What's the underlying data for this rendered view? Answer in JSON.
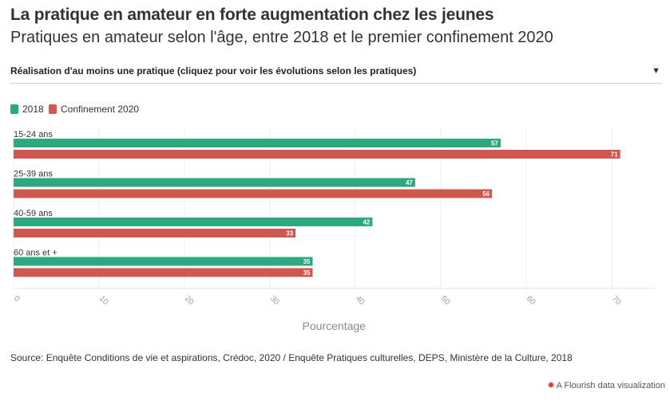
{
  "header": {
    "title": "La pratique en amateur en forte augmentation chez les jeunes",
    "subtitle": "Pratiques en amateur selon l'âge, entre 2018 et le premier confinement 2020"
  },
  "filter": {
    "selected": "Réalisation d'au moins une pratique (cliquez pour voir les évolutions selon les pratiques)",
    "icon": "chevron-down-icon"
  },
  "legend": [
    {
      "label": "2018",
      "color": "#2ea880"
    },
    {
      "label": "Confinement 2020",
      "color": "#d0574f"
    }
  ],
  "chart_data": {
    "type": "bar",
    "orientation": "horizontal",
    "categories": [
      "15-24 ans",
      "25-39 ans",
      "40-59 ans",
      "60 ans et +"
    ],
    "series": [
      {
        "name": "2018",
        "values": [
          57,
          47,
          42,
          35
        ],
        "color": "#2ea880"
      },
      {
        "name": "Confinement 2020",
        "values": [
          71,
          56,
          33,
          35
        ],
        "color": "#d0574f"
      }
    ],
    "xlabel": "Pourcentage",
    "xticks": [
      "0",
      "10",
      "20",
      "30",
      "40",
      "50",
      "60",
      "70"
    ],
    "xlim": [
      0,
      75
    ],
    "grid": true,
    "legend_position": "top-left",
    "data_labels": true
  },
  "footer": {
    "source": "Source: Enquête Conditions de vie et aspirations, Crédoc, 2020 / Enquête Pratiques culturelles, DEPS, Ministère de la Culture, 2018",
    "credit": "A Flourish data visualization",
    "credit_icon": "flourish-logo-icon"
  }
}
